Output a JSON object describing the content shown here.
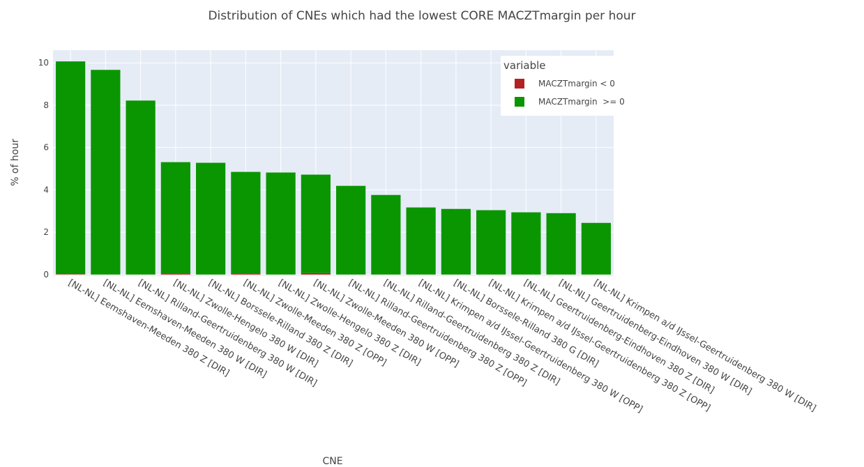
{
  "chart_data": {
    "type": "bar",
    "stacked": true,
    "title": "Distribution of CNEs which had the lowest CORE MACZTmargin per hour",
    "x_label": "CNE",
    "y_label": "% of hour",
    "legend_title": "variable",
    "legend_position": "top-right",
    "grid": true,
    "categories": [
      "[NL-NL] Eemshaven-Meeden 380 Z [DIR]",
      "[NL-NL] Eemshaven-Meeden 380 W [DIR]",
      "[NL-NL] Rilland-Geertruidenberg 380 W [DIR]",
      "[NL-NL] Zwolle-Hengelo 380 W [DIR]",
      "[NL-NL] Borssele-Rilland 380 Z [DIR]",
      "[NL-NL] Zwolle-Meeden 380 Z [OPP]",
      "[NL-NL] Zwolle-Hengelo 380 Z [DIR]",
      "[NL-NL] Zwolle-Meeden 380 W [OPP]",
      "[NL-NL] Rilland-Geertruidenberg 380 Z [OPP]",
      "[NL-NL] Rilland-Geertruidenberg 380 Z [DIR]",
      "[NL-NL] Krimpen a/d IJssel-Geertruidenberg 380 W [OPP]",
      "[NL-NL] Borssele-Rilland 380 G [DIR]",
      "[NL-NL] Krimpen a/d IJssel-Geertruidenberg 380 Z [OPP]",
      "[NL-NL] Geertruidenberg-Eindhoven 380 Z [DIR]",
      "[NL-NL] Geertruidenberg-Eindhoven 380 W [DIR]",
      "[NL-NL] Krimpen a/d IJssel-Geertruidenberg 380 W [DIR]"
    ],
    "series": [
      {
        "name": "MACZTmargin < 0",
        "color": "#b22222",
        "values": [
          0.02,
          0,
          0,
          0.05,
          0,
          0.05,
          0,
          0.07,
          0,
          0,
          0,
          0,
          0,
          0,
          0,
          0
        ]
      },
      {
        "name": "MACZTmargin  >= 0",
        "color": "#0a9600",
        "values": [
          10.05,
          9.67,
          8.22,
          5.26,
          5.28,
          4.8,
          4.82,
          4.65,
          4.19,
          3.76,
          3.17,
          3.1,
          3.04,
          2.94,
          2.9,
          2.44
        ]
      }
    ],
    "ylim": [
      -0.07,
      10.6
    ],
    "yticks": [
      0,
      2,
      4,
      6,
      8,
      10
    ]
  }
}
